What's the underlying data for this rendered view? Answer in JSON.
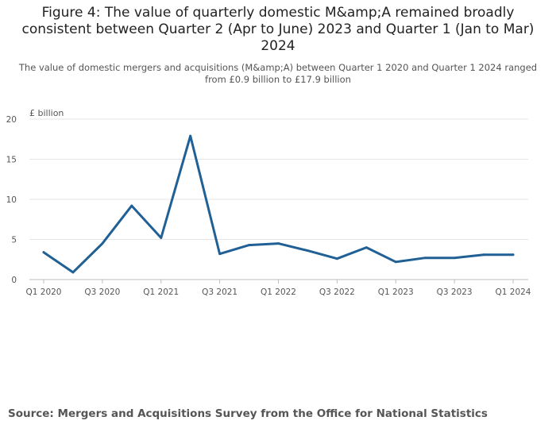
{
  "header": {
    "title": "Figure 4: The value of quarterly domestic M&amp;A remained broadly consistent between Quarter 2 (Apr to June) 2023 and Quarter 1 (Jan to Mar) 2024",
    "subtitle": "The value of domestic mergers and acquisitions (M&amp;A) between Quarter 1 2020 and Quarter 1 2024 ranged from £0.9 billion to £17.9 billion"
  },
  "footer": {
    "source": "Source: Mergers and Acquisitions Survey from the Office for National Statistics"
  },
  "chart_data": {
    "type": "line",
    "ylabel": "£ billion",
    "xlabel": "",
    "ylim": [
      0,
      20
    ],
    "yticks": [
      0,
      5,
      10,
      15,
      20
    ],
    "grid": true,
    "categories": [
      "Q1 2020",
      "Q2 2020",
      "Q3 2020",
      "Q4 2020",
      "Q1 2021",
      "Q2 2021",
      "Q3 2021",
      "Q4 2021",
      "Q1 2022",
      "Q2 2022",
      "Q3 2022",
      "Q4 2022",
      "Q1 2023",
      "Q2 2023",
      "Q3 2023",
      "Q4 2023",
      "Q1 2024"
    ],
    "xtick_labels": [
      "Q1 2020",
      "",
      "Q3 2020",
      "",
      "Q1 2021",
      "",
      "Q3 2021",
      "",
      "Q1 2022",
      "",
      "Q3 2022",
      "",
      "Q1 2023",
      "",
      "Q3 2023",
      "",
      "Q1 2024"
    ],
    "series": [
      {
        "values": [
          3.4,
          0.9,
          4.5,
          9.2,
          5.2,
          17.9,
          3.2,
          4.3,
          4.5,
          3.6,
          2.6,
          4.0,
          2.2,
          2.7,
          2.7,
          3.1,
          3.1
        ],
        "color": "#206095"
      }
    ]
  }
}
